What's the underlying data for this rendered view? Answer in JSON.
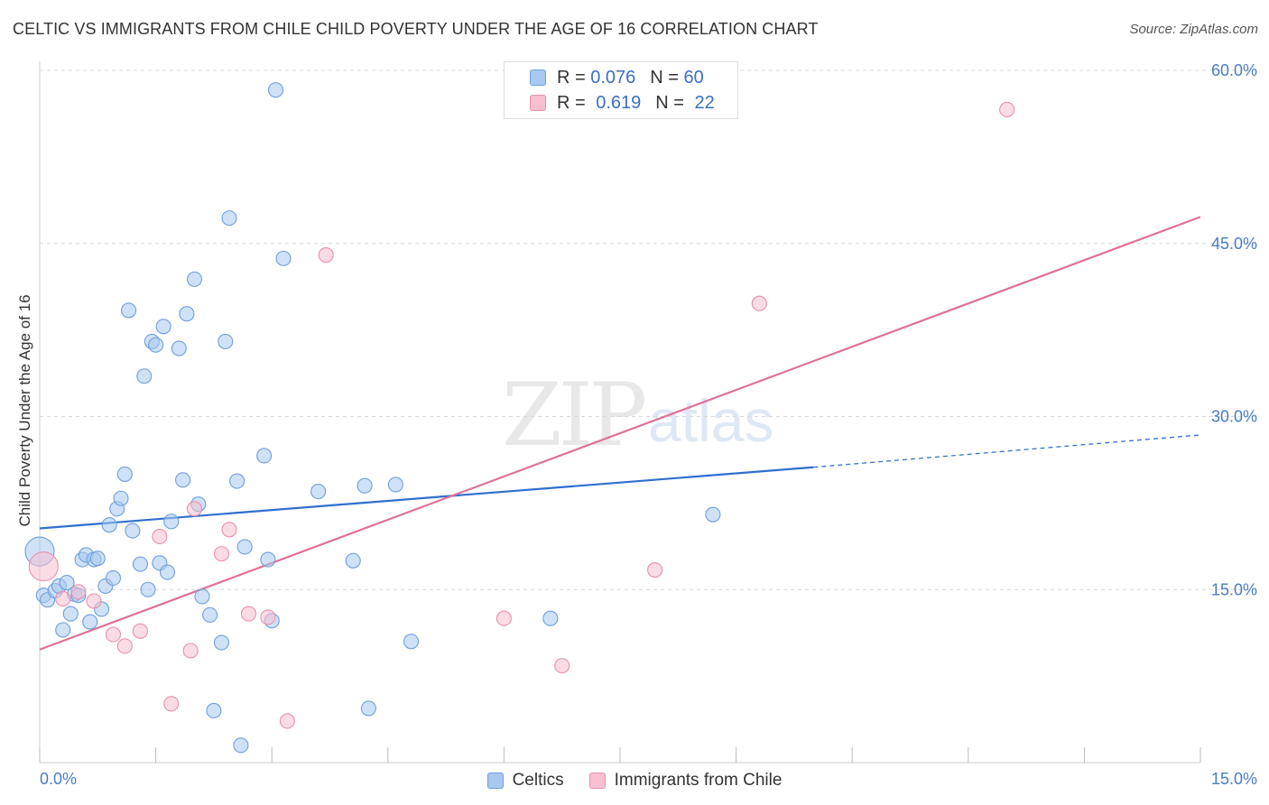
{
  "title": "CELTIC VS IMMIGRANTS FROM CHILE CHILD POVERTY UNDER THE AGE OF 16 CORRELATION CHART",
  "source": "Source: ZipAtlas.com",
  "watermark": {
    "zip": "ZIP",
    "atlas": "atlas"
  },
  "legend": {
    "r_label": "R =",
    "n_label": "N =",
    "series": [
      {
        "r": "0.076",
        "n": "60"
      },
      {
        "r": "0.619",
        "n": "22"
      }
    ]
  },
  "bottom_legend": [
    "Celtics",
    "Immigrants from Chile"
  ],
  "colors": {
    "celtics_fill": "#a8c8f0",
    "celtics_stroke": "#6f9fdc",
    "celtics_line": "#2f6fcf",
    "chile_fill": "#f7bfd0",
    "chile_stroke": "#e890ac",
    "chile_line": "#e07098",
    "tick_text": "#4a7cc4",
    "grid": "#d8d8d8"
  },
  "chart_data": {
    "type": "scatter",
    "xlabel": "",
    "ylabel": "Child Poverty Under the Age of 16",
    "xlim": [
      0,
      15
    ],
    "ylim": [
      0,
      60
    ],
    "x_tick_labels": [
      "0.0%",
      "15.0%"
    ],
    "y_ticks": [
      15,
      30,
      45,
      60
    ],
    "y_tick_labels": [
      "15.0%",
      "30.0%",
      "45.0%",
      "60.0%"
    ],
    "grid": true,
    "legend_position": "top-center",
    "series": [
      {
        "name": "Celtics",
        "r": 0.076,
        "n": 60,
        "trend": {
          "x0": 0,
          "y0": 20.3,
          "x1": 10.0,
          "y1": 25.6,
          "dashed_to_x": 15,
          "dashed_to_y": 28.4
        },
        "points": [
          [
            0.0,
            18.3
          ],
          [
            0.05,
            14.5
          ],
          [
            0.1,
            14.1
          ],
          [
            0.2,
            14.9
          ],
          [
            0.25,
            15.3
          ],
          [
            0.3,
            11.5
          ],
          [
            0.35,
            15.6
          ],
          [
            0.4,
            12.9
          ],
          [
            0.45,
            14.6
          ],
          [
            0.5,
            14.5
          ],
          [
            0.55,
            17.6
          ],
          [
            0.6,
            18.0
          ],
          [
            0.65,
            12.2
          ],
          [
            0.7,
            17.6
          ],
          [
            0.75,
            17.7
          ],
          [
            0.8,
            13.3
          ],
          [
            0.85,
            15.3
          ],
          [
            0.9,
            20.6
          ],
          [
            0.95,
            16.0
          ],
          [
            1.0,
            22.0
          ],
          [
            1.05,
            22.9
          ],
          [
            1.1,
            25.0
          ],
          [
            1.15,
            39.2
          ],
          [
            1.2,
            20.1
          ],
          [
            1.3,
            17.2
          ],
          [
            1.35,
            33.5
          ],
          [
            1.4,
            15.0
          ],
          [
            1.45,
            36.5
          ],
          [
            1.5,
            36.2
          ],
          [
            1.55,
            17.3
          ],
          [
            1.6,
            37.8
          ],
          [
            1.65,
            16.5
          ],
          [
            1.7,
            20.9
          ],
          [
            1.8,
            35.9
          ],
          [
            1.85,
            24.5
          ],
          [
            1.9,
            38.9
          ],
          [
            2.0,
            41.9
          ],
          [
            2.05,
            22.4
          ],
          [
            2.1,
            14.4
          ],
          [
            2.2,
            12.8
          ],
          [
            2.35,
            10.4
          ],
          [
            2.4,
            36.5
          ],
          [
            2.45,
            47.2
          ],
          [
            2.55,
            24.4
          ],
          [
            2.6,
            1.5
          ],
          [
            2.65,
            18.7
          ],
          [
            2.9,
            26.6
          ],
          [
            2.95,
            17.6
          ],
          [
            3.0,
            12.3
          ],
          [
            3.05,
            58.3
          ],
          [
            3.15,
            43.7
          ],
          [
            3.6,
            23.5
          ],
          [
            4.05,
            17.5
          ],
          [
            4.2,
            24.0
          ],
          [
            4.25,
            4.7
          ],
          [
            4.6,
            24.1
          ],
          [
            4.8,
            10.5
          ],
          [
            6.6,
            12.5
          ],
          [
            8.7,
            21.5
          ],
          [
            2.25,
            4.5
          ]
        ]
      },
      {
        "name": "Immigrants from Chile",
        "r": 0.619,
        "n": 22,
        "trend": {
          "x0": 0,
          "y0": 9.8,
          "x1": 15,
          "y1": 47.3
        },
        "points": [
          [
            0.05,
            17.0
          ],
          [
            0.3,
            14.2
          ],
          [
            0.5,
            14.8
          ],
          [
            0.7,
            14.0
          ],
          [
            0.95,
            11.1
          ],
          [
            1.1,
            10.1
          ],
          [
            1.3,
            11.4
          ],
          [
            1.55,
            19.6
          ],
          [
            1.7,
            5.1
          ],
          [
            1.95,
            9.7
          ],
          [
            2.0,
            22.0
          ],
          [
            2.35,
            18.1
          ],
          [
            2.45,
            20.2
          ],
          [
            2.7,
            12.9
          ],
          [
            2.95,
            12.6
          ],
          [
            3.2,
            3.6
          ],
          [
            3.7,
            44.0
          ],
          [
            6.0,
            12.5
          ],
          [
            6.75,
            8.4
          ],
          [
            7.95,
            16.7
          ],
          [
            9.3,
            39.8
          ],
          [
            12.5,
            56.6
          ]
        ]
      }
    ]
  }
}
